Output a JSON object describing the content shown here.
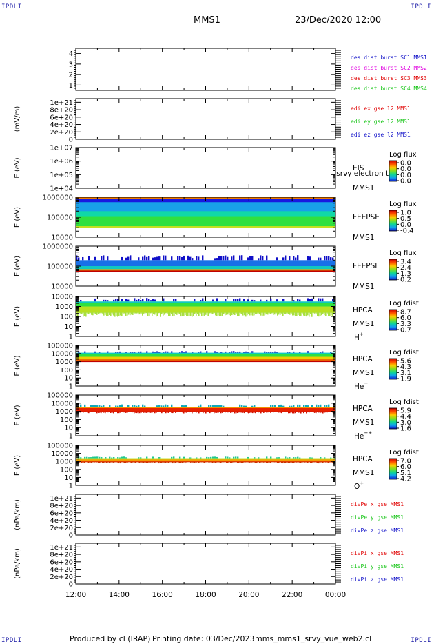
{
  "corner_label": "IPDLI",
  "header": {
    "spacecraft": "MMS1",
    "datetime": "23/Dec/2020 12:00"
  },
  "footer": {
    "produced": "Produced by cl (IRAP)",
    "printing": "Printing date: 03/Dec/2023",
    "script": "mms_mms1_srvy_vue_web2.cl"
  },
  "colors": {
    "red": "#e00000",
    "green": "#16c516",
    "blue": "#1010c8",
    "magenta": "#e000e0",
    "black": "#000000"
  },
  "chart_data": [
    {
      "type": "line",
      "panel": "dist-burst",
      "yscale": "linear",
      "ylim": [
        0.5,
        4.5
      ],
      "yticks": [
        "4",
        "3",
        "2",
        "1"
      ],
      "legend": [
        {
          "text": "des dist burst SC1 MMS1",
          "color": "#1010c8"
        },
        {
          "text": "des dist burst SC2 MMS2",
          "color": "#e000e0"
        },
        {
          "text": "des dist burst SC3 MMS3",
          "color": "#e00000"
        },
        {
          "text": "des dist burst SC4 MMS4",
          "color": "#16c516"
        }
      ]
    },
    {
      "type": "line",
      "panel": "edi-e",
      "ylabel": "(mV/m)",
      "yscale": "linear",
      "ylim": [
        0,
        1.1e+21
      ],
      "zero_line": true,
      "yticks": [
        "1e+21",
        "8e+20",
        "6e+20",
        "4e+20",
        "2e+20",
        "0"
      ],
      "legend": [
        {
          "text": "edi ex gse l2 MMS1",
          "color": "#e00000"
        },
        {
          "text": "edi ey gse l2 MMS1",
          "color": "#16c516"
        },
        {
          "text": "edi ez gse l2 MMS1",
          "color": "#1010c8"
        }
      ]
    },
    {
      "type": "heatmap",
      "panel": "eis",
      "ylabel": "E (eV)",
      "yscale": "log",
      "ylim": [
        10000.0,
        10000000.0
      ],
      "yticks": [
        "1e+07",
        "1e+06",
        "1e+05",
        "1e+04"
      ],
      "labels": [
        "EIS",
        "MMS1"
      ],
      "overlay_text": "l srvy electron to",
      "colorbar": {
        "title": "Log flux",
        "ticks": [
          "0.0",
          "0.0",
          "0.0",
          "0.0"
        ]
      }
    },
    {
      "type": "heatmap",
      "panel": "feepse",
      "ylabel": "E (eV)",
      "yscale": "log",
      "ylim": [
        10000.0,
        1000000.0
      ],
      "yticks": [
        "1000000",
        "100000",
        "10000"
      ],
      "labels": [
        "FEEPSE",
        "MMS1"
      ],
      "colorbar": {
        "title": "Log flux",
        "ticks": [
          "1.0",
          "0.5",
          "0.0",
          "-0.4"
        ]
      },
      "bands": [
        {
          "from": 6.0,
          "to": 5.9,
          "color": "#f07a00"
        },
        {
          "from": 5.9,
          "to": 5.75,
          "color": "#1818e0"
        },
        {
          "from": 5.75,
          "to": 5.3,
          "color": "#18a0e8"
        },
        {
          "from": 5.3,
          "to": 5.05,
          "color": "#10d8a8"
        },
        {
          "from": 5.05,
          "to": 4.55,
          "color": "#30e040"
        },
        {
          "from": 4.55,
          "to": 4.5,
          "color": "#c8e020"
        }
      ]
    },
    {
      "type": "heatmap",
      "panel": "feepsi",
      "ylabel": "E (eV)",
      "yscale": "log",
      "ylim": [
        10000.0,
        1000000.0
      ],
      "yticks": [
        "1000000",
        "100000",
        "10000"
      ],
      "labels": [
        "FEEPSI",
        "MMS1"
      ],
      "colorbar": {
        "title": "Log flux",
        "ticks": [
          "3.4",
          "2.4",
          "1.3",
          "0.2"
        ]
      },
      "bands": [
        {
          "from": 5.55,
          "to": 5.3,
          "color": "#1010c8",
          "sparse": true
        },
        {
          "from": 5.3,
          "to": 5.0,
          "color": "#1870e8"
        },
        {
          "from": 5.0,
          "to": 4.85,
          "color": "#10c8c0"
        },
        {
          "from": 4.85,
          "to": 4.78,
          "color": "#f0a000"
        },
        {
          "from": 4.78,
          "to": 4.72,
          "color": "#c00000"
        }
      ]
    },
    {
      "type": "heatmap",
      "panel": "hpca-h",
      "ylabel": "E (eV)",
      "yscale": "log",
      "ylim": [
        1,
        10000.0
      ],
      "yticks": [
        "10000",
        "1000",
        "100",
        "10",
        "1"
      ],
      "labels": [
        "HPCA",
        "MMS1"
      ],
      "species": "H",
      "species_sup": "+",
      "colorbar": {
        "title": "Log fdist",
        "ticks": [
          "8.7",
          "6.0",
          "3.3",
          "0.7"
        ]
      },
      "bands": [
        {
          "from": 3.85,
          "to": 3.5,
          "color": "#1010c8",
          "sparse": true
        },
        {
          "from": 3.5,
          "to": 3.35,
          "color": "#10c8c0"
        },
        {
          "from": 3.35,
          "to": 3.0,
          "color": "#30e040"
        },
        {
          "from": 3.0,
          "to": 2.4,
          "color": "#b8e020"
        },
        {
          "from": 2.4,
          "to": 1.95,
          "color": "#a8e040",
          "spiky": true
        }
      ]
    },
    {
      "type": "heatmap",
      "panel": "hpca-he",
      "ylabel": "E (eV)",
      "yscale": "log",
      "ylim": [
        1,
        100000.0
      ],
      "yticks": [
        "100000",
        "10000",
        "1000",
        "100",
        "10",
        "1"
      ],
      "labels": [
        "HPCA",
        "MMS1"
      ],
      "species": "He",
      "species_sup": "+",
      "colorbar": {
        "title": "Log fdist",
        "ticks": [
          "5.6",
          "4.3",
          "3.1",
          "1.9"
        ]
      },
      "bands": [
        {
          "from": 4.3,
          "to": 4.1,
          "color": "#1010c8",
          "sparse": true
        },
        {
          "from": 4.1,
          "to": 3.9,
          "color": "#10c8c0"
        },
        {
          "from": 3.9,
          "to": 3.6,
          "color": "#30e040"
        },
        {
          "from": 3.6,
          "to": 3.35,
          "color": "#f0d000"
        },
        {
          "from": 3.35,
          "to": 3.15,
          "color": "#f07000"
        },
        {
          "from": 3.15,
          "to": 3.0,
          "color": "#c00000"
        }
      ]
    },
    {
      "type": "heatmap",
      "panel": "hpca-hepp",
      "ylabel": "E (eV)",
      "yscale": "log",
      "ylim": [
        1,
        100000.0
      ],
      "yticks": [
        "100000",
        "10000",
        "1000",
        "100",
        "10",
        "1"
      ],
      "labels": [
        "HPCA",
        "MMS1"
      ],
      "species": "He",
      "species_sup": "++",
      "colorbar": {
        "title": "Log fdist",
        "ticks": [
          "5.9",
          "4.4",
          "3.0",
          "1.6"
        ]
      },
      "bands": [
        {
          "from": 3.85,
          "to": 3.55,
          "color": "#10a8b8",
          "sparse": true
        },
        {
          "from": 3.55,
          "to": 3.4,
          "color": "#f0a000"
        },
        {
          "from": 3.4,
          "to": 3.0,
          "color": "#e82000"
        },
        {
          "from": 3.0,
          "to": 2.75,
          "color": "#d01000",
          "spiky": true
        }
      ]
    },
    {
      "type": "heatmap",
      "panel": "hpca-o",
      "ylabel": "E (eV)",
      "yscale": "log",
      "ylim": [
        1,
        100000.0
      ],
      "yticks": [
        "100000",
        "10000",
        "1000",
        "100",
        "10",
        "1"
      ],
      "labels": [
        "HPCA",
        "MMS1"
      ],
      "species": "O",
      "species_sup": "+",
      "colorbar": {
        "title": "Log fdist",
        "ticks": [
          "7.0",
          "6.0",
          "5.1",
          "4.2"
        ]
      },
      "bands": [
        {
          "from": 3.6,
          "to": 3.4,
          "color": "#20c890",
          "sparse": true
        },
        {
          "from": 3.4,
          "to": 3.25,
          "color": "#b8e020"
        },
        {
          "from": 3.25,
          "to": 3.1,
          "color": "#f0a000"
        },
        {
          "from": 3.1,
          "to": 2.95,
          "color": "#e84000"
        },
        {
          "from": 2.95,
          "to": 2.75,
          "color": "#c83000",
          "spiky": true
        }
      ]
    },
    {
      "type": "line",
      "panel": "divpe",
      "ylabel": "(nPa/km)",
      "yscale": "linear",
      "ylim": [
        0,
        1.1e+21
      ],
      "zero_line": true,
      "yticks": [
        "1e+21",
        "8e+20",
        "6e+20",
        "4e+20",
        "2e+20",
        "0"
      ],
      "legend": [
        {
          "text": "divPe x gse MMS1",
          "color": "#e00000"
        },
        {
          "text": "divPe y gse MMS1",
          "color": "#16c516"
        },
        {
          "text": "divPe z gse MMS1",
          "color": "#1010c8"
        }
      ]
    },
    {
      "type": "line",
      "panel": "divpi",
      "ylabel": "(nPa/km)",
      "yscale": "linear",
      "ylim": [
        0,
        1.1e+21
      ],
      "zero_line": true,
      "yticks": [
        "1e+21",
        "8e+20",
        "6e+20",
        "4e+20",
        "2e+20",
        "0"
      ],
      "legend": [
        {
          "text": "divPi x gse MMS1",
          "color": "#e00000"
        },
        {
          "text": "divPi y gse MMS1",
          "color": "#16c516"
        },
        {
          "text": "divPi z gse MMS1",
          "color": "#1010c8"
        }
      ]
    }
  ],
  "time_axis": {
    "ticks": [
      "12:00",
      "14:00",
      "16:00",
      "18:00",
      "20:00",
      "22:00",
      "00:00"
    ]
  }
}
